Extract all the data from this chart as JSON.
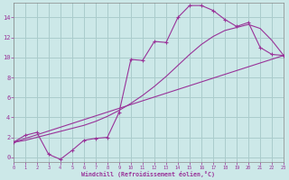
{
  "background_color": "#cce8e8",
  "grid_color": "#aacccc",
  "line_color": "#993399",
  "xlabel": "Windchill (Refroidissement éolien,°C)",
  "xlim": [
    0,
    23
  ],
  "ylim": [
    -0.5,
    15.5
  ],
  "xticks": [
    0,
    1,
    2,
    3,
    4,
    5,
    6,
    7,
    8,
    9,
    10,
    11,
    12,
    13,
    14,
    15,
    16,
    17,
    18,
    19,
    20,
    21,
    22,
    23
  ],
  "yticks": [
    0,
    2,
    4,
    6,
    8,
    10,
    12,
    14
  ],
  "curve1_x": [
    0,
    1,
    2,
    3,
    4,
    5,
    6,
    7,
    8,
    9,
    10,
    11,
    12,
    13,
    14,
    15,
    16,
    17,
    18,
    19,
    20,
    21,
    22,
    23
  ],
  "curve1_y": [
    1.5,
    2.2,
    2.5,
    0.3,
    -0.2,
    0.7,
    1.7,
    1.9,
    2.0,
    4.5,
    9.8,
    9.7,
    11.6,
    11.5,
    14.0,
    15.2,
    15.2,
    14.7,
    13.8,
    13.1,
    13.5,
    11.0,
    10.3,
    10.2
  ],
  "curve2_x": [
    0,
    1,
    2,
    3,
    4,
    5,
    6,
    7,
    8,
    9,
    10,
    11,
    12,
    13,
    14,
    15,
    16,
    17,
    18,
    19,
    20,
    21,
    22,
    23
  ],
  "curve2_y": [
    1.5,
    1.7,
    2.0,
    2.3,
    2.6,
    2.9,
    3.2,
    3.6,
    4.1,
    4.7,
    5.4,
    6.2,
    7.1,
    8.1,
    9.2,
    10.3,
    11.3,
    12.1,
    12.7,
    13.0,
    13.3,
    12.9,
    11.7,
    10.2
  ],
  "line3_x": [
    0,
    23
  ],
  "line3_y": [
    1.5,
    10.2
  ]
}
